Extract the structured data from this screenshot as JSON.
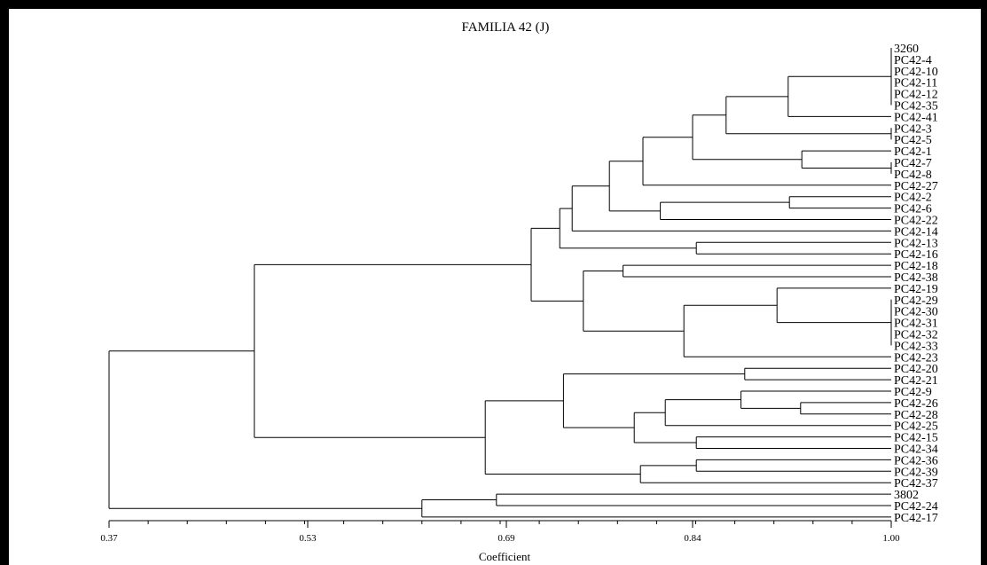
{
  "title": "FAMILIA 42 (J)",
  "xlabel": "Coefficient",
  "leaves": [
    "3260",
    "PC42-4",
    "PC42-10",
    "PC42-11",
    "PC42-12",
    "PC42-35",
    "PC42-41",
    "PC42-3",
    "PC42-5",
    "PC42-1",
    "PC42-7",
    "PC42-8",
    "PC42-27",
    "PC42-2",
    "PC42-6",
    "PC42-22",
    "PC42-14",
    "PC42-13",
    "PC42-16",
    "PC42-18",
    "PC42-38",
    "PC42-19",
    "PC42-29",
    "PC42-30",
    "PC42-31",
    "PC42-32",
    "PC42-33",
    "PC42-23",
    "PC42-20",
    "PC42-21",
    "PC42-9",
    "PC42-26",
    "PC42-28",
    "PC42-25",
    "PC42-15",
    "PC42-34",
    "PC42-36",
    "PC42-39",
    "PC42-37",
    "3802",
    "PC42-24",
    "PC42-17"
  ],
  "chart_data": {
    "type": "dendrogram",
    "title": "FAMILIA 42 (J)",
    "xlabel": "Coefficient",
    "xlim": [
      0.37,
      1.0
    ],
    "xticks": [
      0.37,
      0.53,
      0.69,
      0.84,
      1.0
    ],
    "xtick_labels": [
      "0.37",
      "0.53",
      "0.69",
      "0.84",
      "1.00"
    ],
    "tree": {
      "h": 0.37,
      "c": [
        {
          "h": 0.487,
          "c": [
            {
              "h": 0.71,
              "c": [
                {
                  "h": 0.733,
                  "c": [
                    {
                      "h": 0.743,
                      "c": [
                        {
                          "h": 0.773,
                          "c": [
                            {
                              "h": 0.8,
                              "c": [
                                {
                                  "h": 0.84,
                                  "c": [
                                    {
                                      "h": 0.867,
                                      "c": [
                                        {
                                          "h": 0.917,
                                          "c": [
                                            {
                                              "h": 1.0,
                                              "c": [
                                                {
                                                  "l": 0
                                                },
                                                {
                                                  "l": 1
                                                },
                                                {
                                                  "l": 2
                                                },
                                                {
                                                  "l": 3
                                                },
                                                {
                                                  "l": 4
                                                },
                                                {
                                                  "l": 5
                                                }
                                              ]
                                            },
                                            {
                                              "l": 6
                                            }
                                          ]
                                        },
                                        {
                                          "h": 1.0,
                                          "c": [
                                            {
                                              "l": 7
                                            },
                                            {
                                              "l": 8
                                            }
                                          ]
                                        }
                                      ]
                                    },
                                    {
                                      "h": 0.928,
                                      "c": [
                                        {
                                          "l": 9
                                        },
                                        {
                                          "h": 1.0,
                                          "c": [
                                            {
                                              "l": 10
                                            },
                                            {
                                              "l": 11
                                            }
                                          ]
                                        }
                                      ]
                                    }
                                  ]
                                },
                                {
                                  "l": 12
                                }
                              ]
                            },
                            {
                              "h": 0.814,
                              "c": [
                                {
                                  "h": 0.918,
                                  "c": [
                                    {
                                      "l": 13
                                    },
                                    {
                                      "l": 14
                                    }
                                  ]
                                },
                                {
                                  "l": 15
                                }
                              ]
                            }
                          ]
                        },
                        {
                          "l": 16
                        }
                      ]
                    },
                    {
                      "h": 0.843,
                      "c": [
                        {
                          "l": 17
                        },
                        {
                          "l": 18
                        }
                      ]
                    }
                  ]
                },
                {
                  "h": 0.752,
                  "c": [
                    {
                      "h": 0.784,
                      "c": [
                        {
                          "l": 19
                        },
                        {
                          "l": 20
                        }
                      ]
                    },
                    {
                      "h": 0.833,
                      "c": [
                        {
                          "h": 0.908,
                          "c": [
                            {
                              "l": 21
                            },
                            {
                              "h": 1.0,
                              "c": [
                                {
                                  "l": 22
                                },
                                {
                                  "l": 23
                                },
                                {
                                  "l": 24
                                },
                                {
                                  "l": 25
                                },
                                {
                                  "l": 26
                                }
                              ]
                            }
                          ]
                        },
                        {
                          "l": 27
                        }
                      ]
                    }
                  ]
                }
              ]
            },
            {
              "h": 0.673,
              "c": [
                {
                  "h": 0.736,
                  "c": [
                    {
                      "h": 0.882,
                      "c": [
                        {
                          "l": 28
                        },
                        {
                          "l": 29
                        }
                      ]
                    },
                    {
                      "h": 0.793,
                      "c": [
                        {
                          "h": 0.818,
                          "c": [
                            {
                              "h": 0.879,
                              "c": [
                                {
                                  "l": 30
                                },
                                {
                                  "h": 0.927,
                                  "c": [
                                    {
                                      "l": 31
                                    },
                                    {
                                      "l": 32
                                    }
                                  ]
                                }
                              ]
                            },
                            {
                              "l": 33
                            }
                          ]
                        },
                        {
                          "h": 0.843,
                          "c": [
                            {
                              "l": 34
                            },
                            {
                              "l": 35
                            }
                          ]
                        }
                      ]
                    }
                  ]
                },
                {
                  "h": 0.798,
                  "c": [
                    {
                      "h": 0.843,
                      "c": [
                        {
                          "l": 36
                        },
                        {
                          "l": 37
                        }
                      ]
                    },
                    {
                      "l": 38
                    }
                  ]
                }
              ]
            }
          ]
        },
        {
          "h": 0.622,
          "c": [
            {
              "h": 0.682,
              "c": [
                {
                  "l": 39
                },
                {
                  "l": 40
                }
              ]
            },
            {
              "l": 41
            }
          ]
        }
      ]
    }
  }
}
